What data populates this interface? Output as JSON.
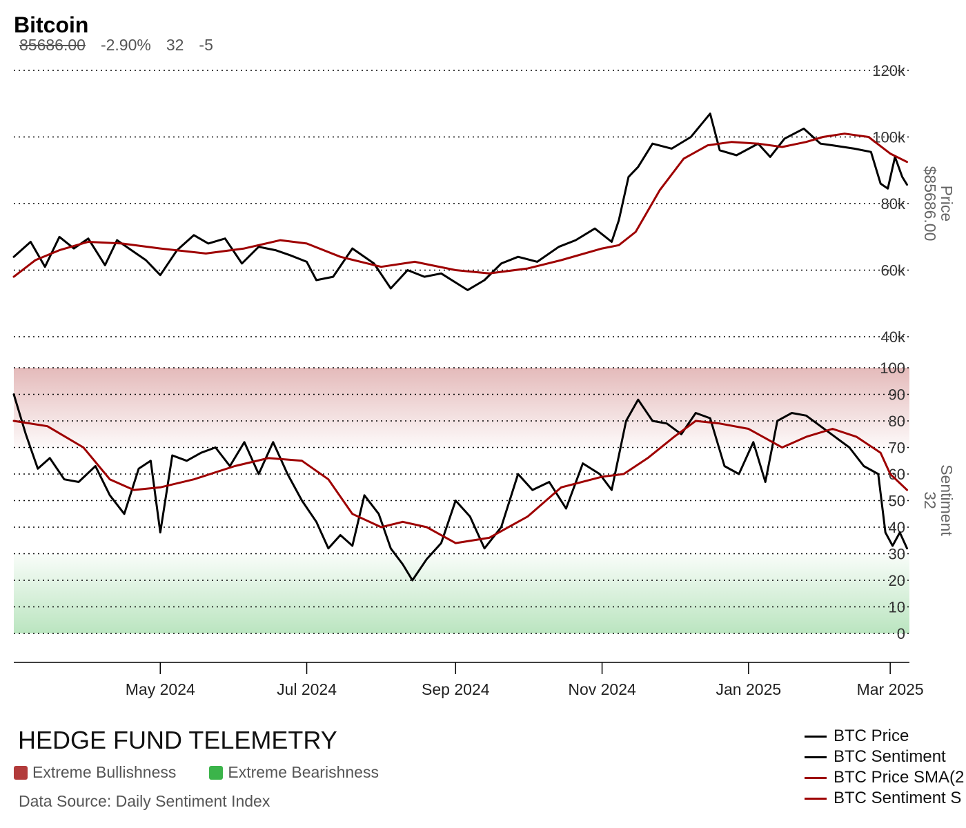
{
  "header": {
    "title": "Bitcoin",
    "last_price": "85686.00",
    "change_pct": "-2.90%",
    "sentiment": "32",
    "sentiment_change": "-5"
  },
  "footer": {
    "brand": "HEDGE FUND TELEMETRY",
    "zone_bull_label": "Extreme Bullishness",
    "zone_bear_label": "Extreme Bearishness",
    "source": "Data Source: Daily Sentiment Index"
  },
  "legend": [
    {
      "label": "BTC Price",
      "color": "#000000"
    },
    {
      "label": "BTC Sentiment",
      "color": "#000000"
    },
    {
      "label": "BTC Price SMA(2",
      "color": "#9e0000"
    },
    {
      "label": "BTC Sentiment S",
      "color": "#9e0000"
    }
  ],
  "colors": {
    "price": "#000000",
    "sma": "#9e0000",
    "bull_zone": "#b23b3b",
    "bear_zone": "#3bb44a"
  },
  "chart_data": [
    {
      "type": "line",
      "name": "price-panel",
      "ylabel": "Price",
      "ylabel_value": "$85686.00",
      "ylim": [
        40000,
        120000
      ],
      "y_ticks": [
        40000,
        60000,
        80000,
        100000,
        120000
      ],
      "y_tick_labels": [
        "40k",
        "60k",
        "80k",
        "100k",
        "120k"
      ],
      "x_ticks": [
        "2024-05-01",
        "2024-07-01",
        "2024-09-01",
        "2024-11-01",
        "2025-01-01",
        "2025-03-01"
      ],
      "x_tick_labels": [
        "May 2024",
        "Jul 2024",
        "Sep 2024",
        "Nov 2024",
        "Jan 2025",
        "Mar 2025"
      ],
      "xlim": [
        "2024-03-01",
        "2025-03-09"
      ],
      "grid": true,
      "series": [
        {
          "name": "BTC Price",
          "x": [
            "2024-03-01",
            "2024-03-08",
            "2024-03-14",
            "2024-03-20",
            "2024-03-26",
            "2024-04-01",
            "2024-04-08",
            "2024-04-13",
            "2024-04-19",
            "2024-04-25",
            "2024-05-01",
            "2024-05-08",
            "2024-05-15",
            "2024-05-21",
            "2024-05-28",
            "2024-06-04",
            "2024-06-11",
            "2024-06-18",
            "2024-06-24",
            "2024-07-01",
            "2024-07-05",
            "2024-07-12",
            "2024-07-20",
            "2024-07-29",
            "2024-08-05",
            "2024-08-12",
            "2024-08-19",
            "2024-08-26",
            "2024-09-06",
            "2024-09-13",
            "2024-09-20",
            "2024-09-27",
            "2024-10-05",
            "2024-10-14",
            "2024-10-21",
            "2024-10-29",
            "2024-11-05",
            "2024-11-08",
            "2024-11-12",
            "2024-11-16",
            "2024-11-22",
            "2024-11-30",
            "2024-12-08",
            "2024-12-16",
            "2024-12-20",
            "2024-12-27",
            "2025-01-05",
            "2025-01-10",
            "2025-01-16",
            "2025-01-24",
            "2025-01-31",
            "2025-02-05",
            "2025-02-14",
            "2025-02-21",
            "2025-02-25",
            "2025-02-28",
            "2025-03-03",
            "2025-03-06",
            "2025-03-08"
          ],
          "values": [
            64000,
            68500,
            61000,
            70000,
            66500,
            69500,
            61500,
            69000,
            66000,
            63000,
            58500,
            66000,
            70500,
            68000,
            69500,
            62000,
            67000,
            66000,
            64500,
            62500,
            57000,
            58000,
            66500,
            62000,
            54500,
            60000,
            58000,
            59000,
            54000,
            57000,
            62000,
            64000,
            62500,
            67000,
            69000,
            72500,
            68500,
            75000,
            88000,
            91000,
            98000,
            96500,
            100000,
            107000,
            96000,
            94500,
            98000,
            94000,
            99500,
            102500,
            98000,
            97500,
            96500,
            95500,
            86000,
            84500,
            94000,
            88000,
            85686
          ]
        },
        {
          "name": "BTC Price SMA(2",
          "x": [
            "2024-03-01",
            "2024-03-10",
            "2024-03-20",
            "2024-04-01",
            "2024-04-15",
            "2024-05-01",
            "2024-05-20",
            "2024-06-05",
            "2024-06-20",
            "2024-07-01",
            "2024-07-15",
            "2024-08-01",
            "2024-08-15",
            "2024-09-01",
            "2024-09-15",
            "2024-10-01",
            "2024-10-15",
            "2024-11-01",
            "2024-11-08",
            "2024-11-15",
            "2024-11-25",
            "2024-12-05",
            "2024-12-15",
            "2024-12-25",
            "2025-01-05",
            "2025-01-15",
            "2025-01-25",
            "2025-02-01",
            "2025-02-10",
            "2025-02-20",
            "2025-03-01",
            "2025-03-08"
          ],
          "values": [
            58000,
            63000,
            66000,
            68500,
            68000,
            66500,
            65000,
            66500,
            69000,
            68000,
            64000,
            61000,
            62500,
            60000,
            59000,
            60500,
            63000,
            66500,
            67500,
            71500,
            84000,
            93500,
            97500,
            98500,
            98000,
            97000,
            98500,
            100000,
            101000,
            100000,
            95000,
            92500
          ]
        }
      ]
    },
    {
      "type": "line",
      "name": "sentiment-panel",
      "ylabel": "Sentiment",
      "ylabel_value": "32",
      "ylim": [
        0,
        100
      ],
      "y_ticks": [
        0,
        10,
        20,
        30,
        40,
        50,
        60,
        70,
        80,
        90,
        100
      ],
      "y_tick_labels": [
        "0",
        "10",
        "20",
        "30",
        "40",
        "50",
        "60",
        "70",
        "80",
        "90",
        "100"
      ],
      "bands": [
        {
          "from": 70,
          "to": 100,
          "zone": "Extreme Bullishness"
        },
        {
          "from": 0,
          "to": 30,
          "zone": "Extreme Bearishness"
        }
      ],
      "grid": true,
      "series": [
        {
          "name": "BTC Sentiment",
          "x": [
            "2024-03-01",
            "2024-03-06",
            "2024-03-11",
            "2024-03-16",
            "2024-03-22",
            "2024-03-28",
            "2024-04-04",
            "2024-04-10",
            "2024-04-16",
            "2024-04-22",
            "2024-04-27",
            "2024-05-01",
            "2024-05-06",
            "2024-05-12",
            "2024-05-18",
            "2024-05-24",
            "2024-05-30",
            "2024-06-05",
            "2024-06-11",
            "2024-06-17",
            "2024-06-23",
            "2024-06-29",
            "2024-07-05",
            "2024-07-10",
            "2024-07-15",
            "2024-07-20",
            "2024-07-25",
            "2024-07-31",
            "2024-08-05",
            "2024-08-10",
            "2024-08-14",
            "2024-08-20",
            "2024-08-26",
            "2024-09-01",
            "2024-09-07",
            "2024-09-13",
            "2024-09-20",
            "2024-09-27",
            "2024-10-03",
            "2024-10-10",
            "2024-10-17",
            "2024-10-24",
            "2024-10-31",
            "2024-11-05",
            "2024-11-11",
            "2024-11-16",
            "2024-11-22",
            "2024-11-28",
            "2024-12-04",
            "2024-12-10",
            "2024-12-16",
            "2024-12-22",
            "2024-12-28",
            "2025-01-03",
            "2025-01-08",
            "2025-01-13",
            "2025-01-19",
            "2025-01-25",
            "2025-01-31",
            "2025-02-06",
            "2025-02-12",
            "2025-02-18",
            "2025-02-24",
            "2025-02-27",
            "2025-03-02",
            "2025-03-05",
            "2025-03-08"
          ],
          "values": [
            90,
            75,
            62,
            66,
            58,
            57,
            63,
            52,
            45,
            62,
            65,
            38,
            67,
            65,
            68,
            70,
            63,
            72,
            60,
            72,
            60,
            50,
            42,
            32,
            37,
            33,
            52,
            45,
            32,
            26,
            20,
            28,
            34,
            50,
            44,
            32,
            40,
            60,
            54,
            57,
            47,
            64,
            60,
            54,
            80,
            88,
            80,
            79,
            75,
            83,
            81,
            63,
            60,
            72,
            57,
            80,
            83,
            82,
            78,
            74,
            70,
            63,
            60,
            38,
            33,
            38,
            32
          ]
        },
        {
          "name": "BTC Sentiment S",
          "x": [
            "2024-03-01",
            "2024-03-15",
            "2024-03-30",
            "2024-04-10",
            "2024-04-20",
            "2024-05-01",
            "2024-05-15",
            "2024-06-01",
            "2024-06-15",
            "2024-06-29",
            "2024-07-10",
            "2024-07-20",
            "2024-08-01",
            "2024-08-10",
            "2024-08-20",
            "2024-09-01",
            "2024-09-15",
            "2024-10-01",
            "2024-10-15",
            "2024-11-01",
            "2024-11-10",
            "2024-11-20",
            "2024-12-01",
            "2024-12-10",
            "2024-12-20",
            "2025-01-01",
            "2025-01-15",
            "2025-01-25",
            "2025-02-05",
            "2025-02-15",
            "2025-02-25",
            "2025-03-01",
            "2025-03-08"
          ],
          "values": [
            80,
            78,
            70,
            58,
            54,
            55,
            58,
            63,
            66,
            65,
            58,
            45,
            40,
            42,
            40,
            34,
            36,
            44,
            55,
            59,
            60,
            66,
            74,
            80,
            79,
            77,
            70,
            74,
            77,
            74,
            68,
            60,
            54
          ]
        }
      ]
    }
  ]
}
